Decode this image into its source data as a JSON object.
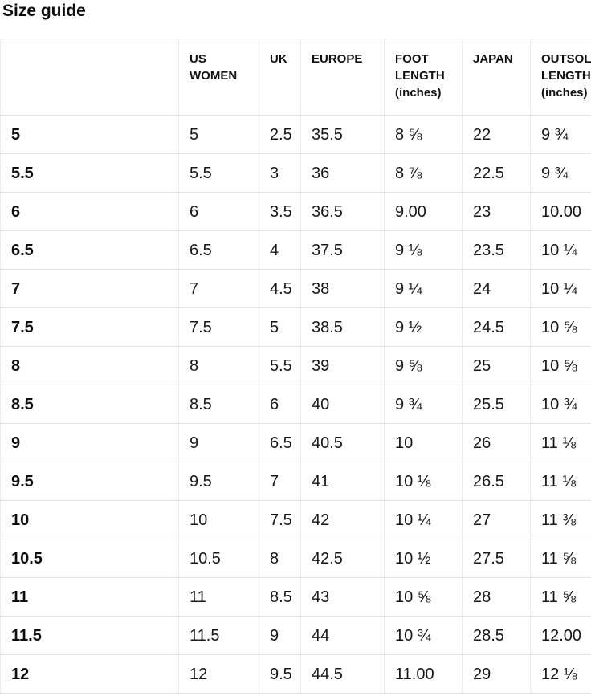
{
  "page": {
    "title": "Size guide"
  },
  "colors": {
    "background": "#ffffff",
    "text": "#0d0d0d",
    "border_horizontal": "#e3e3e3",
    "border_vertical": "#ececec"
  },
  "table": {
    "columns": [
      "",
      "US WOMEN",
      "UK",
      "EUROPE",
      "FOOT LENGTH (inches)",
      "JAPAN",
      "OUTSOLE LENGTH (inches)"
    ],
    "rows": [
      [
        "5",
        "5",
        "2.5",
        "35.5",
        "8 ⅝",
        "22",
        "9 ¾"
      ],
      [
        "5.5",
        "5.5",
        "3",
        "36",
        "8 ⅞",
        "22.5",
        "9 ¾"
      ],
      [
        "6",
        "6",
        "3.5",
        "36.5",
        "9.00",
        "23",
        "10.00"
      ],
      [
        "6.5",
        "6.5",
        "4",
        "37.5",
        "9 ⅛",
        "23.5",
        "10 ¼"
      ],
      [
        "7",
        "7",
        "4.5",
        "38",
        "9 ¼",
        "24",
        "10 ¼"
      ],
      [
        "7.5",
        "7.5",
        "5",
        "38.5",
        "9 ½",
        "24.5",
        "10 ⅝"
      ],
      [
        "8",
        "8",
        "5.5",
        "39",
        "9 ⅝",
        "25",
        "10 ⅝"
      ],
      [
        "8.5",
        "8.5",
        "6",
        "40",
        "9 ¾",
        "25.5",
        "10 ¾"
      ],
      [
        "9",
        "9",
        "6.5",
        "40.5",
        "10",
        "26",
        "11 ⅛"
      ],
      [
        "9.5",
        "9.5",
        "7",
        "41",
        "10 ⅛",
        "26.5",
        "11 ⅛"
      ],
      [
        "10",
        "10",
        "7.5",
        "42",
        "10 ¼",
        "27",
        "11 ⅜"
      ],
      [
        "10.5",
        "10.5",
        "8",
        "42.5",
        "10 ½",
        "27.5",
        "11 ⅝"
      ],
      [
        "11",
        "11",
        "8.5",
        "43",
        "10 ⅝",
        "28",
        "11 ⅝"
      ],
      [
        "11.5",
        "11.5",
        "9",
        "44",
        "10 ¾",
        "28.5",
        "12.00"
      ],
      [
        "12",
        "12",
        "9.5",
        "44.5",
        "11.00",
        "29",
        "12 ⅛"
      ]
    ]
  }
}
